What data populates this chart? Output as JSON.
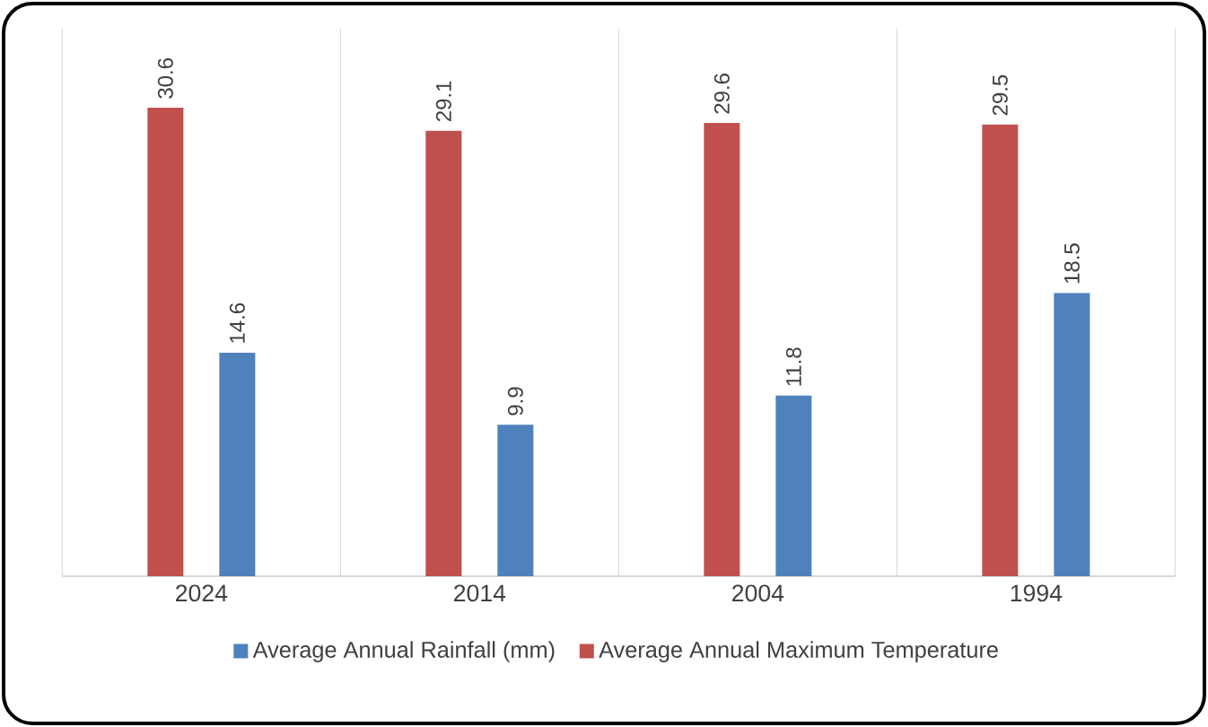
{
  "chart_data": {
    "type": "bar",
    "categories": [
      "2024",
      "2014",
      "2004",
      "1994"
    ],
    "series": [
      {
        "name": "Average Annual Maximum Temperature",
        "color": "#c0504d",
        "values": [
          30.6,
          29.1,
          29.6,
          29.5
        ]
      },
      {
        "name": "Average Annual Rainfall (mm)",
        "color": "#4f81bd",
        "values": [
          14.6,
          9.9,
          11.8,
          18.5
        ]
      }
    ],
    "data_labels": true,
    "legend": "bottom"
  }
}
